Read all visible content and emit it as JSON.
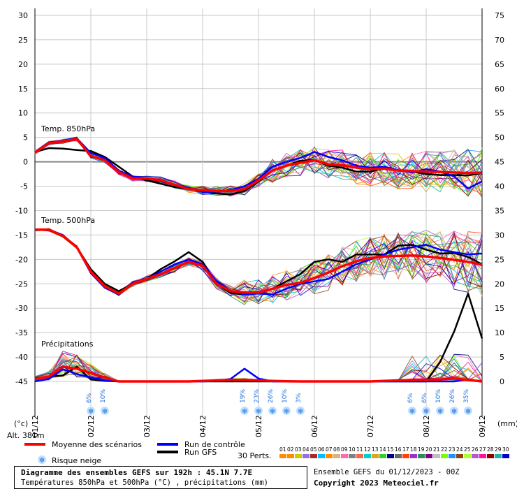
{
  "chart_data": {
    "type": "line",
    "title": "Diagramme des ensembles GEFS sur 192h : 45.1N 7.7E",
    "subtitle": "Températures 850hPa et 500hPa (°C) , précipitations (mm)",
    "left_axis_unit": "(°c)",
    "right_axis_unit": "(mm)",
    "left_ticks": [
      30,
      25,
      20,
      15,
      10,
      5,
      0,
      -5,
      -10,
      -15,
      -20,
      -25,
      -30,
      -35,
      -40,
      -45
    ],
    "right_ticks": [
      75,
      70,
      65,
      60,
      55,
      50,
      45,
      40,
      35,
      30,
      25,
      20,
      15,
      10,
      5,
      0
    ],
    "ylim_temp": [
      -45,
      30
    ],
    "ylim_precip": [
      0,
      75
    ],
    "x_labels": [
      "01/12",
      "02/12",
      "03/12",
      "04/12",
      "05/12",
      "06/12",
      "07/12",
      "08/12",
      "09/12"
    ],
    "x_hours": [
      0,
      192
    ],
    "step_hours": 6,
    "altitude": "Alt. 381m",
    "panel_labels": {
      "t850": "Temp. 850hPa",
      "t500": "Temp. 500hPa",
      "precip": "Précipitations"
    },
    "snow_risk": [
      {
        "hour": 24,
        "label": "6%"
      },
      {
        "hour": 30,
        "label": "10%"
      },
      {
        "hour": 90,
        "label": "19%"
      },
      {
        "hour": 96,
        "label": "23%"
      },
      {
        "hour": 102,
        "label": "26%"
      },
      {
        "hour": 108,
        "label": "10%"
      },
      {
        "hour": 114,
        "label": "3%"
      },
      {
        "hour": 162,
        "label": "6%"
      },
      {
        "hour": 168,
        "label": "6%"
      },
      {
        "hour": 174,
        "label": "10%"
      },
      {
        "hour": 180,
        "label": "26%"
      },
      {
        "hour": 186,
        "label": "35%"
      }
    ],
    "series": [
      {
        "name": "Moyenne des scénarios",
        "role": "mean",
        "color": "#ff0000",
        "t850": [
          1.9,
          3.8,
          4.2,
          4.7,
          1.2,
          0.3,
          -2.1,
          -3.4,
          -3.4,
          -3.8,
          -4.7,
          -5.6,
          -5.8,
          -6.0,
          -6.0,
          -5.6,
          -3.8,
          -1.8,
          -0.8,
          -0.2,
          0.3,
          -0.5,
          -0.7,
          -1.2,
          -1.5,
          -1.4,
          -1.8,
          -1.9,
          -2.0,
          -2.1,
          -2.2,
          -2.3,
          -2.2
        ],
        "t500": [
          -13.9,
          -13.9,
          -15.2,
          -17.5,
          -22.5,
          -25.5,
          -27.0,
          -25.0,
          -24.0,
          -23.0,
          -21.8,
          -20.5,
          -21.3,
          -25.0,
          -26.5,
          -26.8,
          -26.8,
          -26.0,
          -25.2,
          -24.8,
          -23.8,
          -22.7,
          -21.4,
          -20.4,
          -19.7,
          -19.4,
          -19.3,
          -19.2,
          -19.4,
          -19.7,
          -20.1,
          -20.5,
          -21.1
        ],
        "precip": [
          0.5,
          1.0,
          3.0,
          2.6,
          1.7,
          0.8,
          0,
          0,
          0,
          0,
          0,
          0,
          0.1,
          0.2,
          0.3,
          0.3,
          0.2,
          0.1,
          0.05,
          0,
          0,
          0,
          0,
          0,
          0,
          0.1,
          0.2,
          0.3,
          0.3,
          0.4,
          0.6,
          0.3,
          0
        ]
      },
      {
        "name": "Run de contrôle",
        "role": "control",
        "color": "#0000ff",
        "t850": [
          2.0,
          4.0,
          4.3,
          4.8,
          1.8,
          0.8,
          -1.8,
          -3.0,
          -3.4,
          -4.0,
          -4.8,
          -5.3,
          -6.2,
          -6.1,
          -5.8,
          -5.0,
          -3.5,
          -1.0,
          0.0,
          0.8,
          2.0,
          1.0,
          0.3,
          -0.8,
          -1.2,
          -1.0,
          -1.7,
          -2.2,
          -1.5,
          -2.0,
          -3.0,
          -5.5,
          -4.0
        ],
        "t500": [
          -13.9,
          -13.9,
          -15.0,
          -17.5,
          -22.8,
          -25.8,
          -27.2,
          -24.8,
          -24.0,
          -22.5,
          -21.0,
          -20.0,
          -21.0,
          -24.5,
          -26.4,
          -27.2,
          -27.0,
          -27.2,
          -26.0,
          -25.0,
          -24.5,
          -24.0,
          -22.5,
          -21.0,
          -20.0,
          -19.0,
          -18.0,
          -17.5,
          -17.0,
          -18.0,
          -18.5,
          -19.0,
          -18.8
        ],
        "precip": [
          0,
          0.5,
          2.5,
          1.5,
          0.8,
          0.2,
          0,
          0,
          0,
          0,
          0,
          0,
          0,
          0.1,
          0.5,
          2.6,
          0.6,
          0,
          0,
          0,
          0,
          0,
          0,
          0,
          0,
          0,
          0,
          0,
          0,
          0,
          0,
          0.4,
          0
        ]
      },
      {
        "name": "Run GFS",
        "role": "deterministic",
        "color": "#000000",
        "t850": [
          2.0,
          2.8,
          2.7,
          2.4,
          2.2,
          1.0,
          -1.0,
          -3.0,
          -3.8,
          -4.5,
          -5.2,
          -5.6,
          -6.0,
          -6.5,
          -6.7,
          -6.0,
          -4.0,
          -1.8,
          -0.8,
          0.2,
          0.4,
          -0.8,
          -1.2,
          -2.0,
          -2.0,
          -1.3,
          -1.8,
          -2.0,
          -2.5,
          -2.7,
          -2.7,
          -2.8,
          -2.3
        ],
        "t500": [
          -13.9,
          -13.9,
          -15.1,
          -17.5,
          -22.0,
          -25.0,
          -26.5,
          -25.0,
          -24.0,
          -22.0,
          -20.4,
          -18.5,
          -20.5,
          -25.0,
          -26.9,
          -27.2,
          -26.9,
          -26.0,
          -24.5,
          -23.0,
          -20.5,
          -20.0,
          -20.5,
          -19.0,
          -19.0,
          -19.0,
          -17.2,
          -17.0,
          -18.0,
          -18.8,
          -18.7,
          -19.5,
          -21.0
        ],
        "precip": [
          0.6,
          1.0,
          1.2,
          3.0,
          0.4,
          0.1,
          0,
          0,
          0,
          0,
          0,
          0,
          0,
          0,
          0,
          0,
          0,
          0,
          0,
          0,
          0,
          0,
          0,
          0,
          0,
          0,
          0,
          0,
          0,
          4.0,
          10.2,
          18.0,
          8.8
        ]
      }
    ],
    "members_count": 30,
    "member_colors": [
      "#ff8c00",
      "#ff8c00",
      "#cccc00",
      "#9370db",
      "#a52a2a",
      "#00bfff",
      "#ff8c00",
      "#d2b48c",
      "#ff69b4",
      "#808080",
      "#ff6347",
      "#00ced1",
      "#daa520",
      "#32cd32",
      "#000080",
      "#696969",
      "#ff4500",
      "#9932cc",
      "#2e8b57",
      "#800080",
      "#c0c0c0",
      "#7cfc00",
      "#1e90ff",
      "#8b4513",
      "#adff2f",
      "#ba55d3",
      "#ff1493",
      "#8b0000",
      "#20b2aa",
      "#0000cd"
    ]
  },
  "legend": {
    "mean_label": "Moyenne des scénarios",
    "control_label": "Run de contrôle",
    "gfs_label": "Run GFS",
    "snow_label": "Risque neige",
    "perts_label": "30 Perts.",
    "perts_numbers": "01020304050607080910111213141516171819202122232425262728293 0"
  },
  "footer": {
    "title": "Diagramme des ensembles GEFS sur 192h : 45.1N 7.7E",
    "subtitle": "Températures 850hPa et 500hPa (°C) , précipitations (mm)",
    "run": "Ensemble GEFS du 01/12/2023 - 00Z",
    "copyright": "Copyright 2023 Meteociel.fr"
  }
}
